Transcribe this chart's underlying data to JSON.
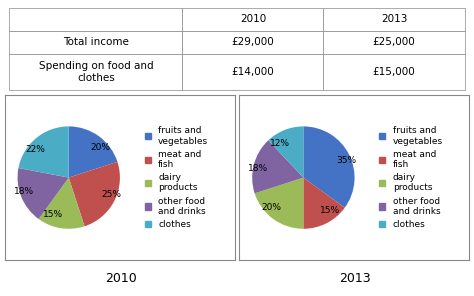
{
  "table": {
    "col_labels": [
      "",
      "2010",
      "2013"
    ],
    "row1_label": "Total income",
    "row2_label": "Spending on food and\nclothes",
    "values": [
      [
        "£29,000",
        "£25,000"
      ],
      [
        "£14,000",
        "£15,000"
      ]
    ]
  },
  "pie_2010": {
    "values": [
      20,
      25,
      15,
      18,
      22
    ],
    "labels": [
      "20%",
      "25%",
      "15%",
      "18%",
      "22%"
    ],
    "colors": [
      "#4472c4",
      "#c0504d",
      "#9bbb59",
      "#8064a2",
      "#4bacc6"
    ],
    "startangle": 90,
    "title": "2010"
  },
  "pie_2013": {
    "values": [
      35,
      15,
      20,
      18,
      12
    ],
    "labels": [
      "35%",
      "15%",
      "20%",
      "18%",
      "12%"
    ],
    "colors": [
      "#4472c4",
      "#c0504d",
      "#9bbb59",
      "#8064a2",
      "#4bacc6"
    ],
    "startangle": 90,
    "title": "2013"
  },
  "legend_labels": [
    "fruits and\nvegetables",
    "meat and\nfish",
    "dairy\nproducts",
    "other food\nand drinks",
    "clothes"
  ],
  "legend_colors": [
    "#4472c4",
    "#c0504d",
    "#9bbb59",
    "#8064a2",
    "#4bacc6"
  ],
  "bg_color": "#ffffff",
  "table_font_size": 7.5,
  "pie_label_font_size": 6.5,
  "legend_font_size": 6.5,
  "title_font_size": 9
}
